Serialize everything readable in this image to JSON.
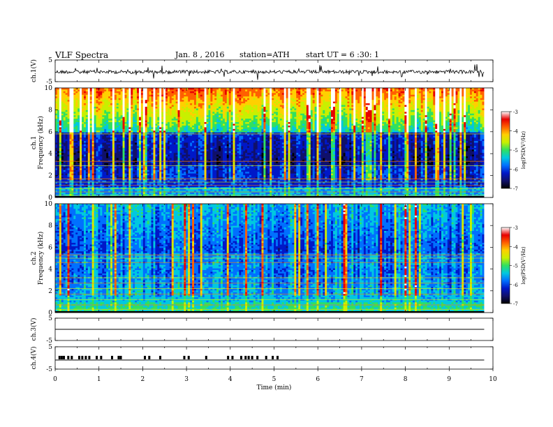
{
  "header": {
    "title": "VLF Spectra",
    "date": "Jan. 8 , 2016",
    "station": "station=ATH",
    "start": "start UT = 6 :30: 1"
  },
  "chart_data": {
    "type": "heatmap",
    "title": "VLF Spectra",
    "xlabel": "Time (min)",
    "x_ticks": [
      "0",
      "1",
      "2",
      "3",
      "4",
      "5",
      "6",
      "7",
      "8",
      "9",
      "10"
    ],
    "xlim": [
      0,
      10
    ],
    "data_end_min": 9.8,
    "panels": [
      {
        "id": "ch1-waveform",
        "type": "line",
        "ylabel": "ch.1(V)",
        "y_ticks": [
          "5",
          "-5"
        ],
        "ylim": [
          -5,
          5
        ],
        "level": -0.5
      },
      {
        "id": "ch1-spectrogram",
        "type": "heatmap",
        "ylabel_top": "ch.1",
        "ylabel": "Frequency (kHz)",
        "y_ticks": [
          "0",
          "2",
          "4",
          "6",
          "8",
          "10"
        ],
        "ylim": [
          0,
          10
        ],
        "colorbar": {
          "label": "log(PSD(V²/Hz)",
          "ticks": [
            "-3",
            "-4",
            "-5",
            "-6",
            "-7"
          ],
          "range": [
            -7,
            -3
          ]
        }
      },
      {
        "id": "ch2-spectrogram",
        "type": "heatmap",
        "ylabel_top": "ch.2",
        "ylabel": "Frequency (kHz)",
        "y_ticks": [
          "0",
          "2",
          "4",
          "6",
          "8",
          "10"
        ],
        "ylim": [
          0,
          10
        ],
        "colorbar": {
          "label": "log(PSD(V²/Hz)",
          "ticks": [
            "-3",
            "-4",
            "-5",
            "-6",
            "-7"
          ],
          "range": [
            -7,
            -3
          ]
        }
      },
      {
        "id": "ch3-waveform",
        "type": "line",
        "ylabel": "ch.3(V)",
        "y_ticks": [
          "5",
          "-5"
        ],
        "ylim": [
          -5,
          5
        ],
        "level": 0
      },
      {
        "id": "ch4-waveform",
        "type": "line",
        "ylabel": "ch.4(V)",
        "y_ticks": [
          "5",
          "-5"
        ],
        "ylim": [
          -5,
          5
        ],
        "level": 0,
        "pulse_times_min": [
          0.1,
          0.15,
          0.2,
          0.3,
          0.38,
          0.55,
          0.62,
          0.7,
          0.78,
          0.95,
          1.05,
          1.3,
          1.45,
          1.5,
          2.05,
          2.15,
          2.4,
          2.95,
          3.05,
          3.45,
          3.95,
          4.05,
          4.25,
          4.35,
          4.42,
          4.5,
          4.62,
          4.82,
          4.97,
          5.08
        ]
      }
    ],
    "colormap": [
      "#000000",
      "#10106a",
      "#0018c8",
      "#0070ff",
      "#00c8e0",
      "#30e060",
      "#c8f000",
      "#ffd000",
      "#ff6000",
      "#e80000",
      "#ffffff"
    ]
  }
}
